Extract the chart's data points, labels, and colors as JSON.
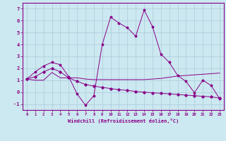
{
  "xlabel": "Windchill (Refroidissement éolien,°C)",
  "x_values": [
    0,
    1,
    2,
    3,
    4,
    5,
    6,
    7,
    8,
    9,
    10,
    11,
    12,
    13,
    14,
    15,
    16,
    17,
    18,
    19,
    20,
    21,
    22,
    23
  ],
  "line1_y": [
    1.1,
    1.7,
    2.2,
    2.5,
    2.3,
    1.3,
    -0.15,
    -1.1,
    -0.3,
    4.0,
    6.3,
    5.8,
    5.4,
    4.7,
    6.9,
    5.5,
    3.2,
    2.5,
    1.4,
    0.9,
    -0.05,
    1.0,
    0.55,
    -0.55
  ],
  "line2_y": [
    1.1,
    1.0,
    1.0,
    1.65,
    1.2,
    1.2,
    1.2,
    1.1,
    1.05,
    1.05,
    1.05,
    1.05,
    1.05,
    1.05,
    1.05,
    1.1,
    1.15,
    1.25,
    1.35,
    1.4,
    1.45,
    1.5,
    1.55,
    1.6
  ],
  "line3_y": [
    1.1,
    1.3,
    1.7,
    2.0,
    1.7,
    1.2,
    0.9,
    0.65,
    0.5,
    0.4,
    0.3,
    0.2,
    0.15,
    0.05,
    0.0,
    -0.05,
    -0.1,
    -0.15,
    -0.2,
    -0.25,
    -0.3,
    -0.35,
    -0.4,
    -0.5
  ],
  "bg_color": "#cce8f0",
  "grid_color": "#aaccdd",
  "line_color": "#880088",
  "ylim": [
    -1.5,
    7.5
  ],
  "xlim": [
    -0.5,
    23.5
  ],
  "yticks": [
    -1,
    0,
    1,
    2,
    3,
    4,
    5,
    6,
    7
  ],
  "xticks": [
    0,
    1,
    2,
    3,
    4,
    5,
    6,
    7,
    8,
    9,
    10,
    11,
    12,
    13,
    14,
    15,
    16,
    17,
    18,
    19,
    20,
    21,
    22,
    23
  ]
}
